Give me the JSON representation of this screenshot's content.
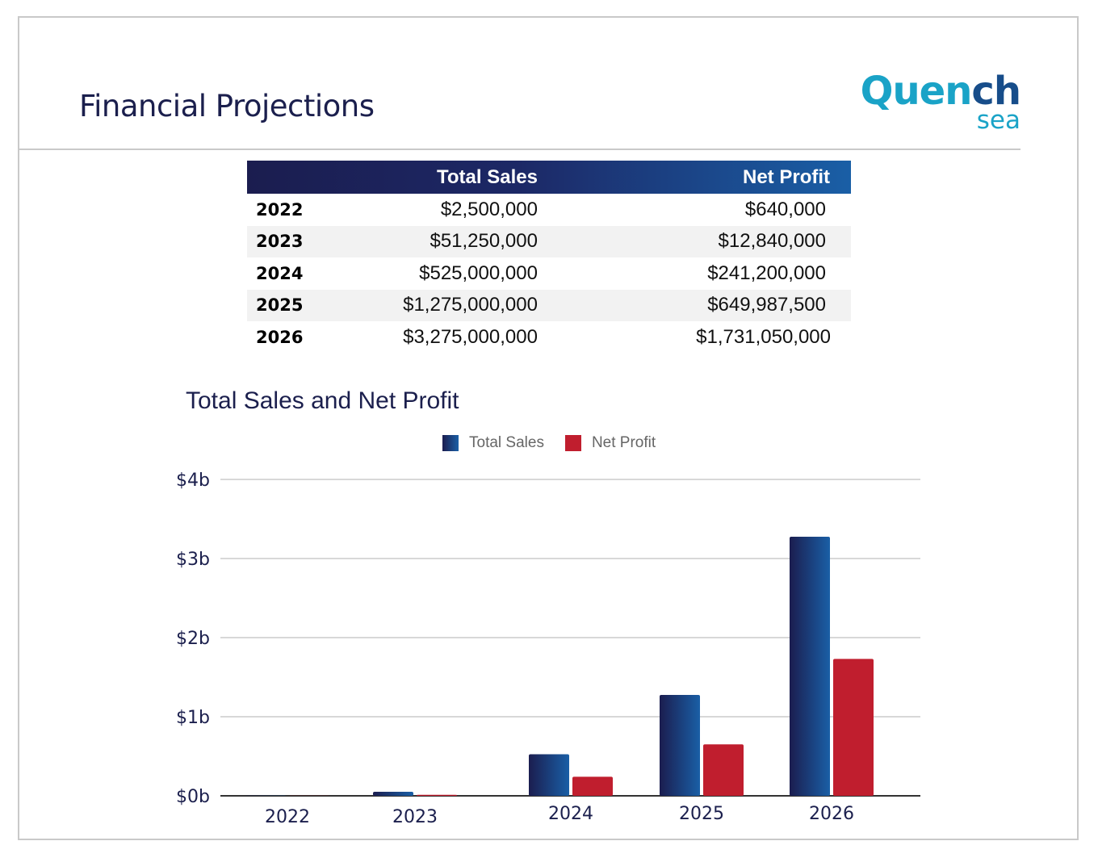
{
  "header": {
    "title": "Financial Projections",
    "logo_part1": "Quen",
    "logo_part2": "ch",
    "logo_sub": "sea"
  },
  "table": {
    "columns": [
      "",
      "Total Sales",
      "Net Profit"
    ],
    "rows": [
      {
        "year": "2022",
        "total_sales": "$2,500,000",
        "net_profit": "$640,000"
      },
      {
        "year": "2023",
        "total_sales": "$51,250,000",
        "net_profit": "$12,840,000"
      },
      {
        "year": "2024",
        "total_sales": "$525,000,000",
        "net_profit": "$241,200,000"
      },
      {
        "year": "2025",
        "total_sales": "$1,275,000,000",
        "net_profit": "$649,987,500"
      },
      {
        "year": "2026",
        "total_sales": "$3,275,000,000",
        "net_profit": "$1,731,050,000"
      }
    ]
  },
  "colors": {
    "navy": "#1b1d4f",
    "blue": "#1a5fa6",
    "red": "#c01e2e",
    "logo_teal": "#1aa3c7",
    "logo_dark": "#174d8a"
  },
  "chart_data": {
    "type": "bar",
    "title": "Total Sales and Net Profit",
    "categories": [
      "2022",
      "2023",
      "2024",
      "2025",
      "2026"
    ],
    "series": [
      {
        "name": "Total Sales",
        "values": [
          0.0025,
          0.05125,
          0.525,
          1.275,
          3.275
        ],
        "color": "#1b2a6b"
      },
      {
        "name": "Net Profit",
        "values": [
          0.00064,
          0.01284,
          0.2412,
          0.6499875,
          1.73105
        ],
        "color": "#c01e2e"
      }
    ],
    "y_ticks": [
      "$0b",
      "$1b",
      "$2b",
      "$3b",
      "$4b"
    ],
    "ylim": [
      0,
      4
    ],
    "grid": true,
    "legend": "top"
  }
}
